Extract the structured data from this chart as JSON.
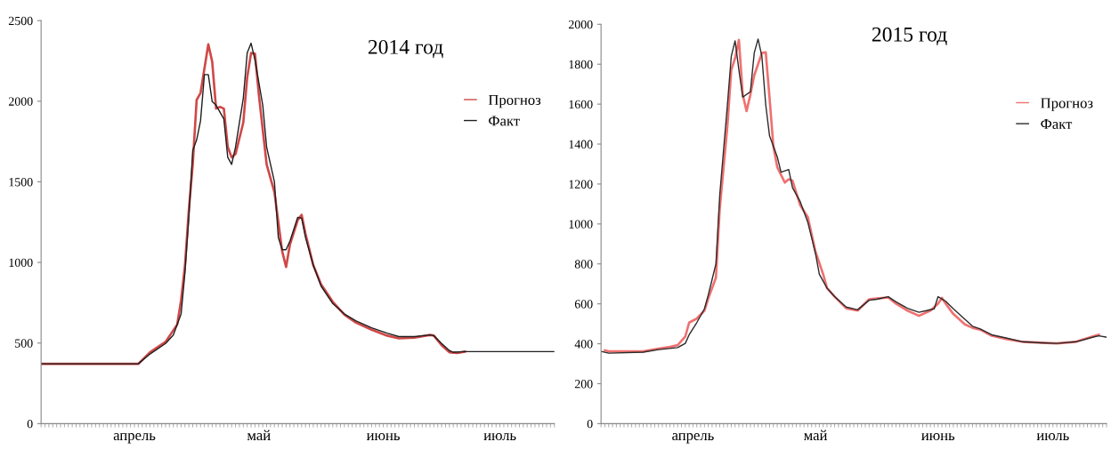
{
  "chart_data": [
    {
      "type": "line",
      "title": "2014 год",
      "ylim": [
        0,
        2500
      ],
      "yticks": [
        0,
        500,
        1000,
        1500,
        2000,
        2500
      ],
      "categories": [
        null,
        null,
        null,
        null,
        null,
        null,
        null,
        null,
        null,
        null,
        null,
        null,
        null,
        null,
        null,
        null,
        null,
        null,
        null,
        null,
        null,
        null,
        null,
        null,
        "апрель",
        null,
        null,
        null,
        null,
        null,
        null,
        null,
        null,
        null,
        null,
        null,
        null,
        null,
        null,
        null,
        null,
        null,
        null,
        null,
        null,
        null,
        null,
        null,
        null,
        null,
        null,
        null,
        null,
        null,
        null,
        null,
        "май",
        null,
        null,
        null,
        null,
        null,
        null,
        null,
        null,
        null,
        null,
        null,
        null,
        null,
        null,
        null,
        null,
        null,
        null,
        null,
        null,
        null,
        null,
        null,
        null,
        null,
        null,
        null,
        null,
        null,
        null,
        null,
        "июнь",
        null,
        null,
        null,
        null,
        null,
        null,
        null,
        null,
        null,
        null,
        null,
        null,
        null,
        null,
        null,
        null,
        null,
        null,
        null,
        null,
        null,
        null,
        null,
        null,
        null,
        null,
        null,
        null,
        null,
        "июль",
        null,
        null,
        null,
        null,
        null,
        null,
        null,
        null,
        null,
        null,
        null,
        null,
        null,
        null
      ],
      "grid": false,
      "legend": "top right",
      "marker": "none",
      "line_style": "solid",
      "series": [
        {
          "name": "Прогноз",
          "color": "#d04848",
          "values": [
            371,
            null,
            null,
            null,
            null,
            null,
            null,
            null,
            null,
            null,
            null,
            null,
            null,
            null,
            null,
            null,
            null,
            null,
            null,
            null,
            null,
            null,
            null,
            null,
            null,
            371,
            null,
            null,
            443,
            null,
            null,
            null,
            507,
            null,
            null,
            615,
            766,
            982,
            1328,
            1608,
            2008,
            2051,
            null,
            2353,
            2245,
            1954,
            1965,
            1954,
            1716,
            1652,
            1673,
            null,
            1868,
            2148,
            2299,
            2295,
            2040,
            null,
            1608,
            null,
            1436,
            null,
            1069,
            972,
            1112,
            null,
            1263,
            1295,
            1177,
            null,
            982,
            null,
            864,
            null,
            null,
            756,
            null,
            null,
            676,
            null,
            null,
            626,
            null,
            null,
            null,
            583,
            null,
            null,
            null,
            546,
            null,
            null,
            529,
            null,
            null,
            null,
            533,
            null,
            null,
            null,
            550,
            546,
            null,
            486,
            null,
            443,
            null,
            438,
            null,
            447,
            null,
            null,
            null,
            null,
            null,
            null,
            null,
            null,
            null,
            null,
            null,
            null,
            null,
            null,
            null,
            null,
            null,
            null,
            null,
            null,
            null,
            null,
            null
          ]
        },
        {
          "name": "Факт",
          "color": "#1e1e1e",
          "values": [
            371,
            null,
            null,
            null,
            null,
            null,
            null,
            null,
            null,
            null,
            null,
            null,
            null,
            null,
            null,
            null,
            null,
            null,
            null,
            null,
            null,
            null,
            null,
            null,
            null,
            371,
            null,
            null,
            432,
            null,
            null,
            null,
            497,
            null,
            550,
            null,
            680,
            939,
            1285,
            1695,
            1760,
            1878,
            2165,
            2165,
            1997,
            1975,
            null,
            1889,
            1652,
            1608,
            1716,
            null,
            2019,
            2299,
            2360,
            2256,
            null,
            1975,
            1716,
            null,
            1500,
            1155,
            1079,
            1079,
            1133,
            null,
            1280,
            1274,
            1155,
            null,
            982,
            null,
            853,
            null,
            null,
            745,
            null,
            null,
            680,
            null,
            null,
            637,
            null,
            null,
            null,
            594,
            null,
            null,
            null,
            561,
            null,
            null,
            540,
            null,
            null,
            null,
            540,
            null,
            null,
            null,
            550,
            546,
            null,
            497,
            null,
            453,
            443,
            null,
            null,
            447,
            null,
            null,
            null,
            null,
            null,
            null,
            null,
            null,
            null,
            null,
            null,
            null,
            null,
            null,
            null,
            null,
            null,
            null,
            null,
            null,
            null,
            null,
            447
          ]
        }
      ]
    },
    {
      "type": "line",
      "title": "2015 год",
      "ylim": [
        0,
        2000
      ],
      "yticks": [
        0,
        200,
        400,
        600,
        800,
        1000,
        1200,
        1400,
        1600,
        1800,
        2000
      ],
      "categories": [
        null,
        null,
        null,
        null,
        null,
        null,
        null,
        null,
        null,
        null,
        null,
        null,
        null,
        null,
        null,
        null,
        null,
        null,
        null,
        null,
        null,
        null,
        null,
        null,
        "апрель",
        null,
        null,
        null,
        null,
        null,
        null,
        null,
        null,
        null,
        null,
        null,
        null,
        null,
        null,
        null,
        null,
        null,
        null,
        null,
        null,
        null,
        null,
        null,
        null,
        null,
        null,
        null,
        null,
        null,
        null,
        null,
        "май",
        null,
        null,
        null,
        null,
        null,
        null,
        null,
        null,
        null,
        null,
        null,
        null,
        null,
        null,
        null,
        null,
        null,
        null,
        null,
        null,
        null,
        null,
        null,
        null,
        null,
        null,
        null,
        null,
        null,
        null,
        null,
        "июнь",
        null,
        null,
        null,
        null,
        null,
        null,
        null,
        null,
        null,
        null,
        null,
        null,
        null,
        null,
        null,
        null,
        null,
        null,
        null,
        null,
        null,
        null,
        null,
        null,
        null,
        null,
        null,
        null,
        null,
        "июль",
        null,
        null,
        null,
        null,
        null,
        null,
        null,
        null,
        null,
        null,
        null,
        null,
        null,
        null
      ],
      "grid": false,
      "legend": "top right",
      "marker": "none",
      "line_style": "solid",
      "series": [
        {
          "name": "Прогноз",
          "color": "#f07070",
          "values": [
            null,
            367,
            362,
            null,
            null,
            null,
            null,
            null,
            null,
            null,
            null,
            362,
            null,
            null,
            null,
            376,
            null,
            null,
            384,
            null,
            393,
            null,
            436,
            506,
            null,
            526,
            null,
            566,
            627,
            null,
            731,
            1077,
            null,
            1493,
            1770,
            1830,
            1922,
            1648,
            1565,
            1648,
            1744,
            null,
            1856,
            1860,
            1631,
            1389,
            1285,
            null,
            1207,
            1224,
            1216,
            null,
            1094,
            null,
            1034,
            null,
            861,
            null,
            748,
            679,
            null,
            636,
            null,
            null,
            578,
            null,
            null,
            566,
            null,
            null,
            623,
            null,
            627,
            null,
            null,
            632,
            null,
            601,
            null,
            null,
            566,
            null,
            null,
            540,
            null,
            null,
            566,
            null,
            601,
            630,
            601,
            null,
            549,
            null,
            null,
            497,
            null,
            480,
            null,
            471,
            null,
            null,
            440,
            null,
            null,
            null,
            423,
            null,
            null,
            null,
            410,
            null,
            null,
            null,
            null,
            405,
            null,
            null,
            null,
            402,
            null,
            null,
            null,
            null,
            410,
            null,
            null,
            null,
            null,
            440,
            445,
            null,
            null
          ]
        },
        {
          "name": "Факт",
          "color": "#2a2a2a",
          "values": [
            362,
            null,
            353,
            null,
            null,
            null,
            null,
            null,
            null,
            null,
            null,
            358,
            null,
            null,
            null,
            371,
            null,
            null,
            null,
            null,
            381,
            null,
            402,
            445,
            null,
            506,
            null,
            575,
            644,
            null,
            800,
            1146,
            null,
            1597,
            1839,
            1917,
            1770,
            1635,
            null,
            1662,
            1856,
            1926,
            1839,
            1597,
            1441,
            null,
            1337,
            1259,
            null,
            1273,
            1181,
            null,
            1112,
            null,
            1008,
            null,
            852,
            748,
            null,
            679,
            null,
            636,
            null,
            null,
            584,
            null,
            null,
            570,
            null,
            null,
            618,
            null,
            623,
            null,
            null,
            636,
            null,
            610,
            null,
            null,
            578,
            null,
            null,
            558,
            null,
            566,
            null,
            575,
            636,
            null,
            613,
            null,
            575,
            null,
            null,
            523,
            null,
            488,
            null,
            474,
            null,
            null,
            445,
            null,
            null,
            null,
            428,
            null,
            null,
            null,
            410,
            null,
            null,
            null,
            null,
            405,
            null,
            null,
            null,
            402,
            null,
            null,
            null,
            null,
            410,
            null,
            null,
            null,
            null,
            436,
            440,
            null,
            433
          ]
        }
      ]
    }
  ]
}
